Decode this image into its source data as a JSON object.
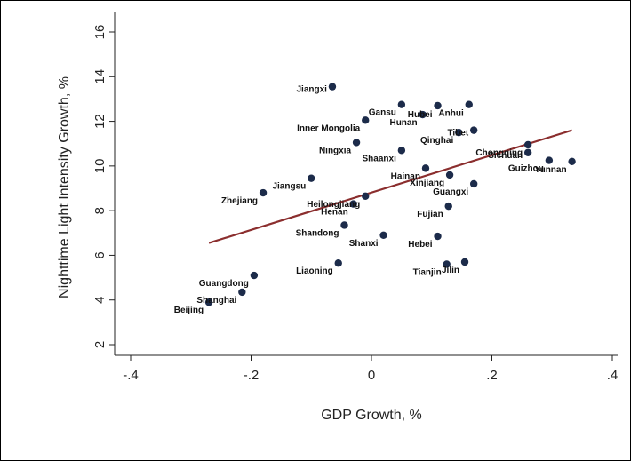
{
  "chart_data": {
    "type": "scatter",
    "title": "",
    "xlabel": "GDP Growth, %",
    "ylabel": "Nighttime Light Intensity Growth, %",
    "xlim": [
      -0.4,
      0.4
    ],
    "ylim": [
      2,
      16
    ],
    "xticks": [
      -0.4,
      -0.2,
      0,
      0.2,
      0.4
    ],
    "xtick_labels": [
      "-.4",
      "-.2",
      "0",
      ".2",
      ".4"
    ],
    "yticks": [
      2,
      4,
      6,
      8,
      10,
      12,
      14,
      16
    ],
    "ytick_labels": [
      "2",
      "4",
      "6",
      "8",
      "10",
      "12",
      "14",
      "16"
    ],
    "grid": false,
    "point_color": "#1c2b4a",
    "fit_color": "#8b2e2e",
    "fit_line": {
      "x": [
        -0.27,
        0.333
      ],
      "y": [
        6.55,
        11.6
      ]
    },
    "points": [
      {
        "label": "Jiangxi",
        "x": -0.065,
        "y": 13.55
      },
      {
        "label": "Gansu",
        "x": 0.05,
        "y": 12.75
      },
      {
        "label": "Hubei",
        "x": 0.11,
        "y": 12.7
      },
      {
        "label": "Anhui",
        "x": 0.162,
        "y": 12.75
      },
      {
        "label": "Inner Mongolia",
        "x": -0.01,
        "y": 12.05
      },
      {
        "label": "Hunan",
        "x": 0.085,
        "y": 12.3
      },
      {
        "label": "Qinghai",
        "x": 0.145,
        "y": 11.5
      },
      {
        "label": "Tibet",
        "x": 0.17,
        "y": 11.6
      },
      {
        "label": "Ningxia",
        "x": -0.025,
        "y": 11.05
      },
      {
        "label": "Shaanxi",
        "x": 0.05,
        "y": 10.7
      },
      {
        "label": "Sichuan",
        "x": 0.26,
        "y": 10.6
      },
      {
        "label": "Chongqing",
        "x": 0.26,
        "y": 10.95
      },
      {
        "label": "Guizhou",
        "x": 0.295,
        "y": 10.25
      },
      {
        "label": "Yunnan",
        "x": 0.333,
        "y": 10.2
      },
      {
        "label": "Hainan",
        "x": 0.09,
        "y": 9.9
      },
      {
        "label": "Xinjiang",
        "x": 0.13,
        "y": 9.6
      },
      {
        "label": "Jiangsu",
        "x": -0.1,
        "y": 9.45
      },
      {
        "label": "Guangxi",
        "x": 0.17,
        "y": 9.2
      },
      {
        "label": "Zhejiang",
        "x": -0.18,
        "y": 8.8
      },
      {
        "label": "Heilongjiang",
        "x": -0.01,
        "y": 8.65
      },
      {
        "label": "Henan",
        "x": -0.03,
        "y": 8.3
      },
      {
        "label": "Fujian",
        "x": 0.128,
        "y": 8.2
      },
      {
        "label": "Shandong",
        "x": -0.045,
        "y": 7.35
      },
      {
        "label": "Shanxi",
        "x": 0.02,
        "y": 6.9
      },
      {
        "label": "Hebei",
        "x": 0.11,
        "y": 6.85
      },
      {
        "label": "Liaoning",
        "x": -0.055,
        "y": 5.65
      },
      {
        "label": "Tianjin",
        "x": 0.125,
        "y": 5.6
      },
      {
        "label": "Jilin",
        "x": 0.155,
        "y": 5.7
      },
      {
        "label": "Guangdong",
        "x": -0.195,
        "y": 5.1
      },
      {
        "label": "Shanghai",
        "x": -0.215,
        "y": 4.35
      },
      {
        "label": "Beijing",
        "x": -0.27,
        "y": 3.9
      }
    ]
  }
}
